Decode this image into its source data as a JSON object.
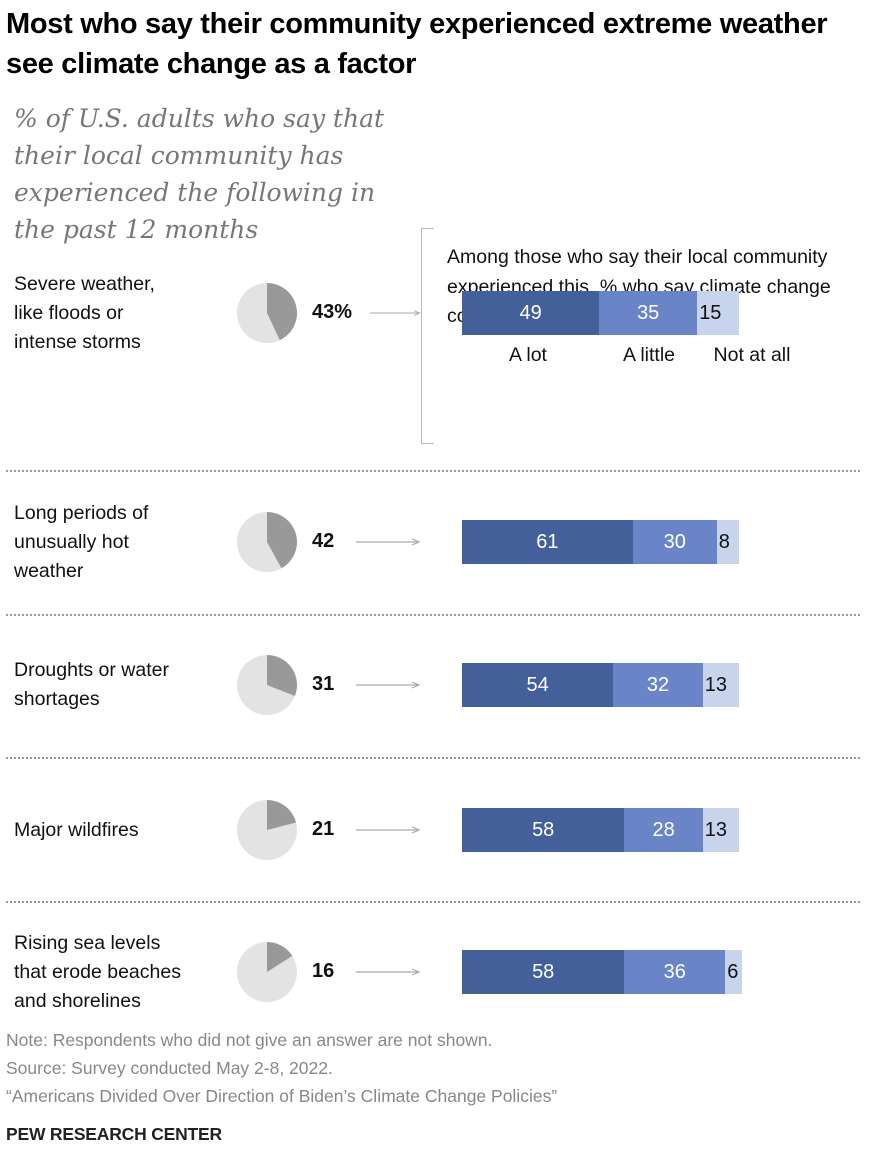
{
  "chart_data": {
    "type": "bar",
    "title": "Most who say their community experienced extreme weather see climate change as a factor",
    "subtitle": "% of U.S. adults who say that their local community has experienced the following in the past 12 months",
    "intro": "Among those who say their local community experienced this, % who say climate change contributed ...",
    "legend": [
      "A lot",
      "A little",
      "Not at all"
    ],
    "colors": {
      "a_lot": "#44609b",
      "a_little": "#6a85c7",
      "not_at_all": "#c8d4ec",
      "pie_fill": "#999999",
      "pie_bg": "#e3e3e3"
    },
    "rows": [
      {
        "label": "Severe weather, like floods or intense storms",
        "label_lines": [
          "Severe weather,",
          "like floods or",
          "intense storms"
        ],
        "pct": 43,
        "pct_label": "43%",
        "a_lot": 49,
        "a_little": 35,
        "not_at_all": 15
      },
      {
        "label": "Long periods of unusually hot weather",
        "label_lines": [
          "Long periods of",
          "unusually hot",
          "weather"
        ],
        "pct": 42,
        "pct_label": "42",
        "a_lot": 61,
        "a_little": 30,
        "not_at_all": 8
      },
      {
        "label": "Droughts or water shortages",
        "label_lines": [
          "Droughts or water",
          "shortages"
        ],
        "pct": 31,
        "pct_label": "31",
        "a_lot": 54,
        "a_little": 32,
        "not_at_all": 13
      },
      {
        "label": "Major wildfires",
        "label_lines": [
          "Major wildfires"
        ],
        "pct": 21,
        "pct_label": "21",
        "a_lot": 58,
        "a_little": 28,
        "not_at_all": 13
      },
      {
        "label": "Rising sea levels that erode beaches and shorelines",
        "label_lines": [
          "Rising sea levels",
          "that erode beaches",
          "and shorelines"
        ],
        "pct": 16,
        "pct_label": "16",
        "a_lot": 58,
        "a_little": 36,
        "not_at_all": 6
      }
    ]
  },
  "footer": {
    "note": "Note: Respondents who did not give an answer are not shown.",
    "source": "Source: Survey conducted May 2-8, 2022.",
    "report": "“Americans Divided Over Direction of Biden’s Climate Change Policies”",
    "brand": "PEW RESEARCH CENTER"
  }
}
